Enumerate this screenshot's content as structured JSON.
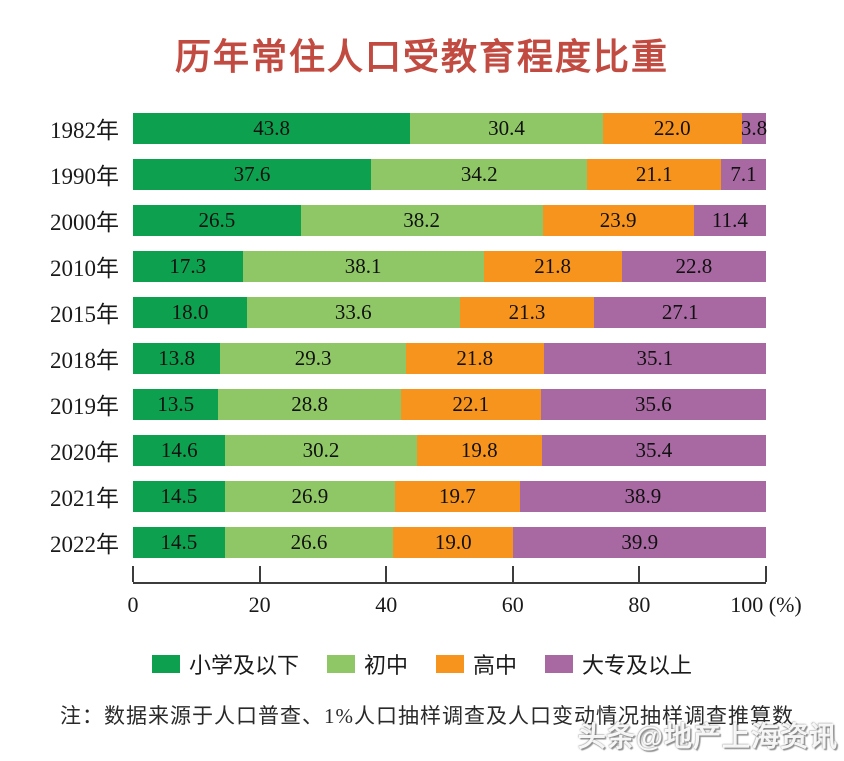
{
  "title": "历年常住人口受教育程度比重",
  "note": "注：数据来源于人口普查、1%人口抽样调查及人口变动情况抽样调查推算数",
  "watermark": "头条@地产上海资讯",
  "colors": {
    "title": "#c24b41",
    "axis": "#3c3c3c",
    "value_text": "#111111"
  },
  "chart_data": {
    "type": "bar",
    "orientation": "horizontal",
    "stacked": true,
    "title": "历年常住人口受教育程度比重",
    "categories": [
      "1982年",
      "1990年",
      "2000年",
      "2010年",
      "2015年",
      "2018年",
      "2019年",
      "2020年",
      "2021年",
      "2022年"
    ],
    "series": [
      {
        "name": "小学及以下",
        "color": "#0da04f",
        "values": [
          43.8,
          37.6,
          26.5,
          17.3,
          18.0,
          13.8,
          13.5,
          14.6,
          14.5,
          14.5
        ]
      },
      {
        "name": "初中",
        "color": "#8fc766",
        "values": [
          30.4,
          34.2,
          38.2,
          38.1,
          33.6,
          29.3,
          28.8,
          30.2,
          26.9,
          26.6
        ]
      },
      {
        "name": "高中",
        "color": "#f7941e",
        "values": [
          22.0,
          21.1,
          23.9,
          21.8,
          21.3,
          21.8,
          22.1,
          19.8,
          19.7,
          19.0
        ]
      },
      {
        "name": "大专及以上",
        "color": "#a869a3",
        "values": [
          3.8,
          7.1,
          11.4,
          22.8,
          27.1,
          35.1,
          35.6,
          35.4,
          38.9,
          39.9
        ]
      }
    ],
    "xlabel": "",
    "ylabel": "",
    "xlim": [
      0,
      100
    ],
    "axis_ticks": [
      0,
      20,
      40,
      60,
      80,
      100
    ],
    "axis_tick_labels": [
      "0",
      "20",
      "40",
      "60",
      "80",
      "100 (%)"
    ],
    "legend": [
      "小学及以下",
      "初中",
      "高中",
      "大专及以上"
    ],
    "legend_position": "bottom",
    "grid": false,
    "value_label_format": "one_decimal"
  }
}
